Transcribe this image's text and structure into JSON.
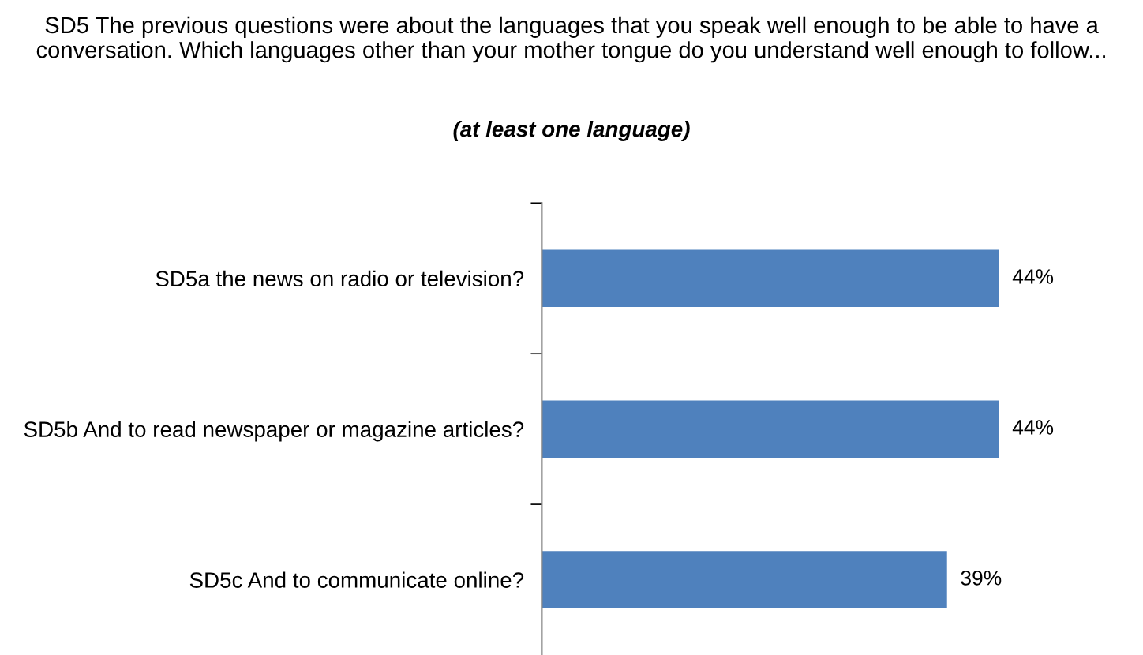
{
  "chart_data": {
    "type": "bar",
    "orientation": "horizontal",
    "title": "SD5 The previous questions were about the languages that you speak well enough to be able to have a conversation. Which languages other than your mother tongue do you understand well enough to follow...",
    "subtitle": "(at least one language)",
    "categories": [
      "SD5a the news on radio or television?",
      "SD5b And to read newspaper or magazine articles?",
      "SD5c And to communicate online?"
    ],
    "values": [
      44,
      44,
      39
    ],
    "color": "#4f81bd",
    "value_labels": [
      "44%",
      "44%",
      "39%"
    ],
    "tick_labels": "y"
  }
}
